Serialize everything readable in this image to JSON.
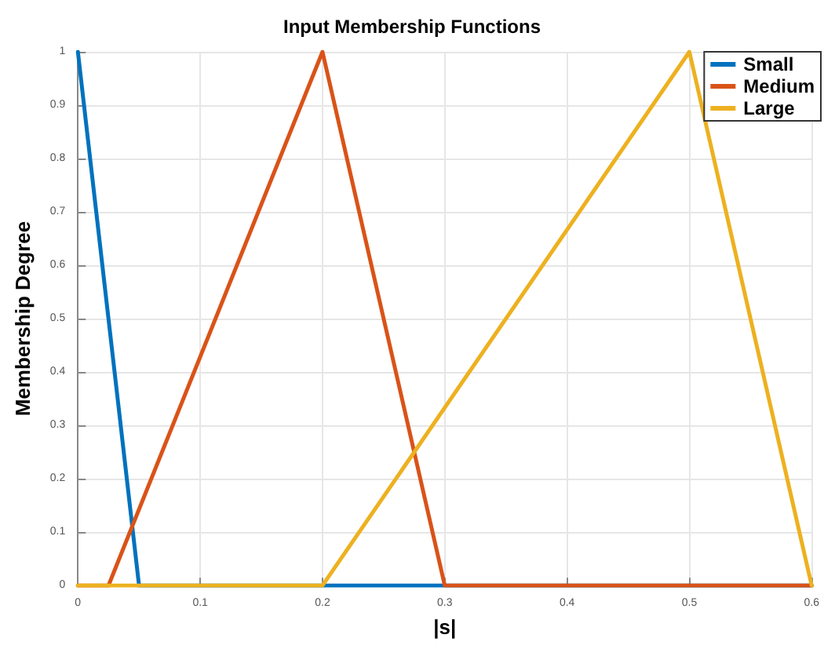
{
  "chart_data": {
    "type": "line",
    "title": "Input Membership Functions",
    "xlabel": "|s|",
    "ylabel": "Membership Degree",
    "series": [
      {
        "name": "Small",
        "color": "#0072bd",
        "x": [
          0,
          0.05,
          0.6
        ],
        "values": [
          1,
          0,
          0
        ]
      },
      {
        "name": "Medium",
        "color": "#d95319",
        "x": [
          0,
          0.025,
          0.2,
          0.3,
          0.6
        ],
        "values": [
          0,
          0,
          1,
          0,
          0
        ]
      },
      {
        "name": "Large",
        "color": "#edb120",
        "x": [
          0,
          0.2,
          0.5,
          0.6
        ],
        "values": [
          0,
          0,
          1,
          0
        ]
      }
    ],
    "xlim": [
      0,
      0.6
    ],
    "xticks": [
      0,
      0.1,
      0.2,
      0.3,
      0.4,
      0.5,
      0.6
    ],
    "ylim": [
      0,
      1
    ],
    "yticks": [
      0,
      0.1,
      0.2,
      0.3,
      0.4,
      0.5,
      0.6,
      0.7,
      0.8,
      0.9,
      1
    ],
    "grid": true,
    "legend": "top right",
    "marker": "none",
    "line_style": "solid"
  }
}
